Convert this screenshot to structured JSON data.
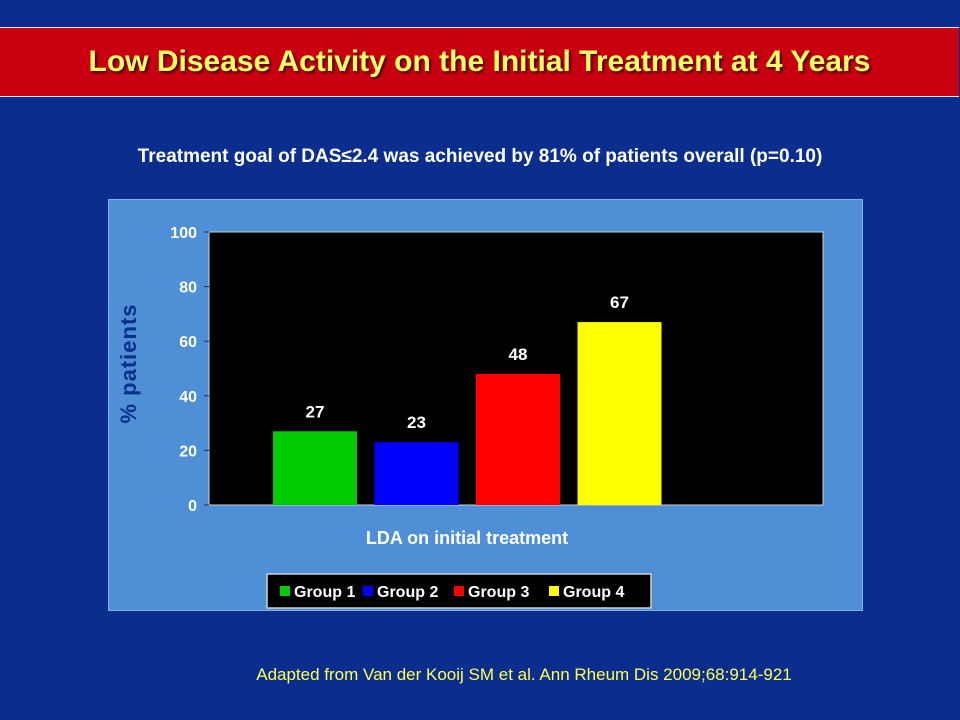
{
  "slide": {
    "title": "Low Disease Activity on the Initial Treatment at 4 Years",
    "subtitle": "Treatment goal of DAS≤2.4 was achieved by 81% of patients overall (p=0.10)",
    "source": "Adapted from Van der Kooij SM et al. Ann Rheum Dis 2009;68:914-921"
  },
  "colors": {
    "background": "#0a2d8e",
    "title_bar": "#c8000f",
    "title_text": "#ffff66",
    "panel": "#4f8fd6",
    "plot_area": "#000000"
  },
  "chart_data": {
    "type": "bar",
    "categories": [
      "Group 1",
      "Group 2",
      "Group 3",
      "Group 4"
    ],
    "values": [
      27,
      23,
      48,
      67
    ],
    "data_labels": [
      "27",
      "23",
      "48",
      "67"
    ],
    "colors": [
      "#00cc00",
      "#0000ff",
      "#ff0000",
      "#ffff00"
    ],
    "xlabel": "LDA on initial treatment",
    "ylabel": "% patients",
    "ylim": [
      0,
      100
    ],
    "yticks": [
      0,
      20,
      40,
      60,
      80,
      100
    ],
    "ytick_labels": [
      "0",
      "20",
      "40",
      "60",
      "80",
      "100"
    ],
    "grid": false,
    "legend": {
      "placement": "bottom",
      "entries": [
        "Group 1",
        "Group 2",
        "Group 3",
        "Group 4"
      ]
    }
  }
}
